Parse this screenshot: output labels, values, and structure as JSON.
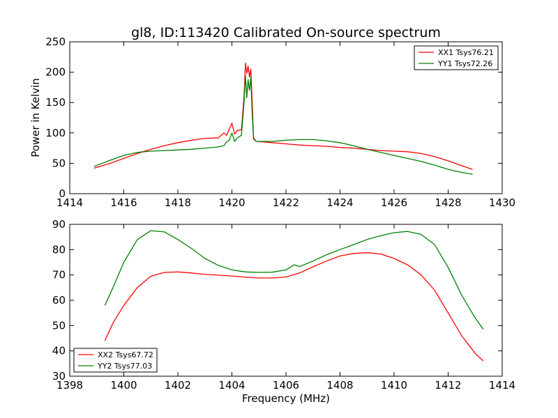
{
  "figure": {
    "title": "gl8, ID:113420 Calibrated On-source spectrum",
    "ylabel_top": "Power in Kelvin",
    "xlabel_bottom": "Frequency (MHz)"
  },
  "chart_data": [
    {
      "type": "line",
      "title": "gl8, ID:113420 Calibrated On-source spectrum",
      "xlabel": "",
      "ylabel": "Power in Kelvin",
      "xlim": [
        1414,
        1430
      ],
      "ylim": [
        0,
        250
      ],
      "xticks": [
        1414,
        1416,
        1418,
        1420,
        1422,
        1424,
        1426,
        1428,
        1430
      ],
      "yticks": [
        0,
        50,
        100,
        150,
        200,
        250
      ],
      "grid": false,
      "legend_position": "top-right",
      "series": [
        {
          "name": "XX1 Tsys76.21",
          "color": "#ff0000",
          "x": [
            1414.9,
            1415.5,
            1416.0,
            1416.5,
            1417.0,
            1417.5,
            1418.0,
            1418.5,
            1419.0,
            1419.5,
            1419.7,
            1419.8,
            1419.9,
            1420.0,
            1420.1,
            1420.2,
            1420.35,
            1420.45,
            1420.5,
            1420.55,
            1420.6,
            1420.65,
            1420.7,
            1420.75,
            1420.8,
            1420.9,
            1421.2,
            1421.5,
            1422.0,
            1422.5,
            1423.0,
            1423.5,
            1424.0,
            1424.5,
            1425.0,
            1425.5,
            1426.0,
            1426.5,
            1427.0,
            1427.5,
            1428.0,
            1428.5,
            1428.9
          ],
          "y": [
            42,
            50,
            58,
            66,
            73,
            79,
            84,
            88,
            91,
            92,
            100,
            96,
            106,
            116,
            98,
            104,
            105,
            160,
            215,
            198,
            210,
            192,
            205,
            150,
            92,
            86,
            85,
            84,
            82,
            80,
            79,
            78,
            76,
            75,
            73,
            71,
            70,
            69,
            66,
            61,
            54,
            46,
            40
          ]
        },
        {
          "name": "YY1 Tsys72.26",
          "color": "#008000",
          "x": [
            1414.9,
            1415.5,
            1416.0,
            1416.5,
            1417.0,
            1417.5,
            1418.0,
            1418.5,
            1419.0,
            1419.5,
            1419.7,
            1419.8,
            1419.9,
            1420.0,
            1420.1,
            1420.2,
            1420.35,
            1420.45,
            1420.5,
            1420.55,
            1420.6,
            1420.65,
            1420.7,
            1420.75,
            1420.8,
            1420.9,
            1421.2,
            1421.5,
            1422.0,
            1422.5,
            1423.0,
            1423.5,
            1424.0,
            1424.5,
            1425.0,
            1425.5,
            1426.0,
            1426.5,
            1427.0,
            1427.5,
            1428.0,
            1428.5,
            1428.9
          ],
          "y": [
            45,
            55,
            63,
            68,
            70,
            71,
            72,
            73,
            75,
            77,
            79,
            85,
            88,
            100,
            86,
            92,
            96,
            150,
            195,
            158,
            188,
            170,
            192,
            130,
            90,
            86,
            86,
            86,
            88,
            89,
            89,
            87,
            84,
            79,
            73,
            68,
            63,
            58,
            53,
            47,
            40,
            35,
            32
          ]
        }
      ]
    },
    {
      "type": "line",
      "title": "",
      "xlabel": "Frequency (MHz)",
      "ylabel": "",
      "xlim": [
        1398,
        1414
      ],
      "ylim": [
        30,
        90
      ],
      "xticks": [
        1398,
        1400,
        1402,
        1404,
        1406,
        1408,
        1410,
        1412,
        1414
      ],
      "yticks": [
        30,
        40,
        50,
        60,
        70,
        80,
        90
      ],
      "grid": false,
      "legend_position": "bottom-left",
      "series": [
        {
          "name": "XX2 Tsys67.72",
          "color": "#ff0000",
          "x": [
            1399.3,
            1399.6,
            1400.0,
            1400.5,
            1401.0,
            1401.5,
            1402.0,
            1402.5,
            1403.0,
            1403.5,
            1404.0,
            1404.5,
            1405.0,
            1405.5,
            1406.0,
            1406.5,
            1407.0,
            1407.5,
            1408.0,
            1408.5,
            1409.0,
            1409.5,
            1410.0,
            1410.5,
            1411.0,
            1411.5,
            1412.0,
            1412.5,
            1413.0,
            1413.3
          ],
          "y": [
            44,
            51,
            58,
            65,
            69.5,
            71,
            71.2,
            70.8,
            70.2,
            69.9,
            69.6,
            69.1,
            68.8,
            68.8,
            69.2,
            70.8,
            73.2,
            75.5,
            77.5,
            78.5,
            78.8,
            78.3,
            76.5,
            74,
            70,
            64,
            55,
            46,
            39,
            36
          ]
        },
        {
          "name": "YY2 Tsys77.03",
          "color": "#008000",
          "x": [
            1399.3,
            1399.6,
            1400.0,
            1400.5,
            1401.0,
            1401.5,
            1402.0,
            1402.5,
            1403.0,
            1403.5,
            1404.0,
            1404.5,
            1405.0,
            1405.5,
            1406.0,
            1406.3,
            1406.5,
            1407.0,
            1407.5,
            1408.0,
            1408.5,
            1409.0,
            1409.5,
            1410.0,
            1410.5,
            1411.0,
            1411.5,
            1412.0,
            1412.5,
            1413.0,
            1413.3
          ],
          "y": [
            58,
            65,
            75,
            84,
            87.5,
            87,
            84,
            80.5,
            76.5,
            73.8,
            72,
            71.2,
            71,
            71.1,
            72,
            74,
            73.3,
            75.5,
            78,
            80,
            82,
            84,
            85.5,
            86.7,
            87.2,
            86,
            82,
            73,
            62,
            53,
            48.5
          ]
        }
      ]
    }
  ]
}
